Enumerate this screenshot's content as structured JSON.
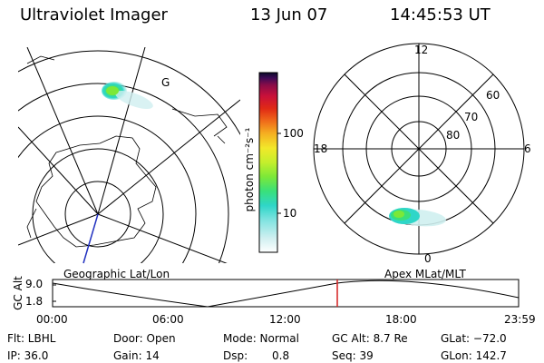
{
  "header": {
    "title": "Ultraviolet Imager",
    "date": "13 Jun 07",
    "time": "14:45:53 UT"
  },
  "left_map": {
    "label": "Geographic Lat/Lon",
    "marker": "G"
  },
  "right_polar": {
    "label": "Apex MLat/MLT",
    "mlt_labels": {
      "top": "12",
      "left": "18",
      "right": "6",
      "bottom": "0"
    },
    "mlat_labels": [
      "60",
      "70",
      "80"
    ]
  },
  "colorbar": {
    "unit_label": "photon cm⁻²s⁻¹",
    "ticks": [
      "100",
      "10"
    ]
  },
  "orbit_plot": {
    "ylabel": "GC Alt",
    "yticks": [
      "9.0",
      "1.8"
    ],
    "xticks": [
      "00:00",
      "06:00",
      "12:00",
      "18:00",
      "23:59"
    ]
  },
  "info": {
    "row1": {
      "flt": "Flt: LBHL",
      "door": "Door: Open",
      "mode": "Mode: Normal",
      "gcalt": "GC Alt: 8.7 Re",
      "glat": "GLat: −72.0"
    },
    "row2": {
      "ip": "IP: 36.0",
      "gain": "Gain: 14",
      "dsp_label": "Dsp:",
      "dsp_value": "0.8",
      "seq": "Seq: 39",
      "glon": "GLon: 142.7"
    }
  },
  "colors": {
    "colorbar": [
      "#ffffff",
      "#cfeff0",
      "#7fe3e0",
      "#2fd6c8",
      "#39e07a",
      "#7ce838",
      "#c4ef2c",
      "#f2e82a",
      "#f5b021",
      "#f06b1a",
      "#e02a15",
      "#c8103a",
      "#8a0c48",
      "#3d0a55",
      "#0a0a2a"
    ],
    "orbit_marker": "#d42020",
    "satellite_line": "#2030c0"
  }
}
